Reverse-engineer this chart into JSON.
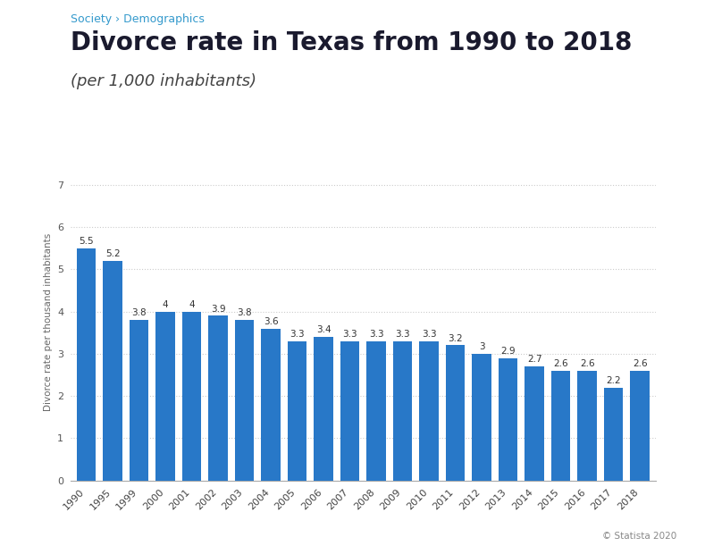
{
  "title": "Divorce rate in Texas from 1990 to 2018",
  "subtitle": "(per 1,000 inhabitants)",
  "breadcrumb": "Society › Demographics",
  "ylabel": "Divorce rate per thousand inhabitants",
  "footer": "© Statista 2020",
  "background_color": "#ffffff",
  "plot_bg_color": "#ffffff",
  "bar_color": "#2878c8",
  "years": [
    "1990",
    "1995",
    "1999",
    "2000",
    "2001",
    "2002",
    "2003",
    "2004",
    "2005",
    "2006",
    "2007",
    "2008",
    "2009",
    "2010",
    "2011",
    "2012",
    "2013",
    "2014",
    "2015",
    "2016",
    "2017",
    "2018"
  ],
  "values": [
    5.5,
    5.2,
    3.8,
    4.0,
    4.0,
    3.9,
    3.8,
    3.6,
    3.3,
    3.4,
    3.3,
    3.3,
    3.3,
    3.3,
    3.2,
    3.0,
    2.9,
    2.7,
    2.6,
    2.6,
    2.2,
    2.6
  ],
  "ylim": [
    0,
    7.5
  ],
  "yticks": [
    0,
    1,
    2,
    3,
    4,
    5,
    6,
    7
  ],
  "grid_color": "#cccccc",
  "title_color": "#1a1a2e",
  "breadcrumb_color": "#3399cc",
  "label_fontsize": 7.5,
  "title_fontsize": 20,
  "subtitle_fontsize": 13,
  "breadcrumb_fontsize": 9,
  "ylabel_fontsize": 7.5,
  "xlabel_fontsize": 8,
  "footer_fontsize": 7.5
}
